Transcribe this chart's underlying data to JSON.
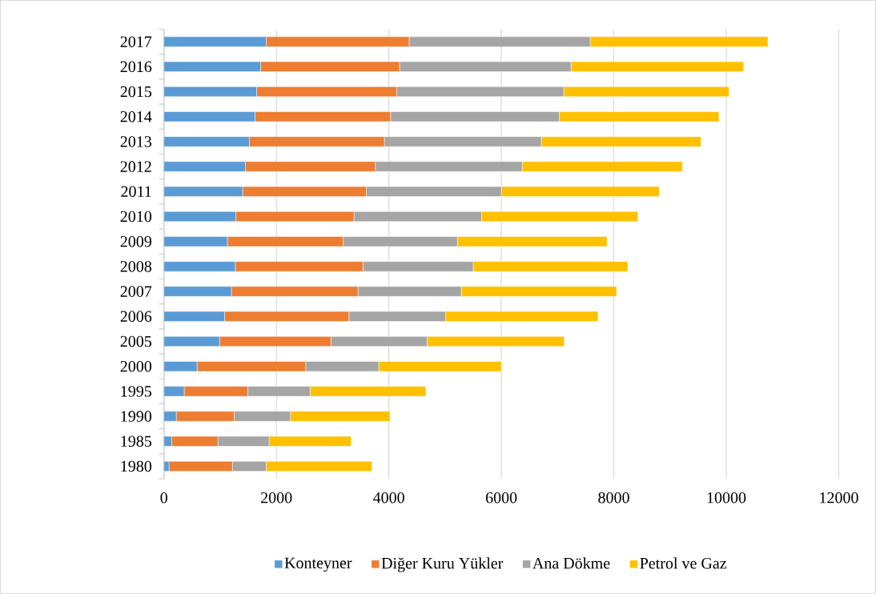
{
  "chart_data": {
    "type": "bar",
    "orientation": "horizontal",
    "stacked": true,
    "categories": [
      "2017",
      "2016",
      "2015",
      "2014",
      "2013",
      "2012",
      "2011",
      "2010",
      "2009",
      "2008",
      "2007",
      "2006",
      "2005",
      "2000",
      "1995",
      "1990",
      "1985",
      "1980"
    ],
    "series": [
      {
        "name": "Konteyner",
        "color": "#5b9bd5",
        "values": [
          1820,
          1720,
          1650,
          1620,
          1520,
          1450,
          1400,
          1280,
          1130,
          1270,
          1200,
          1080,
          990,
          590,
          360,
          220,
          140,
          90
        ]
      },
      {
        "name": "Diğer Kuru Yükler",
        "color": "#ed7d31",
        "values": [
          2540,
          2470,
          2490,
          2410,
          2400,
          2310,
          2200,
          2100,
          2060,
          2270,
          2250,
          2210,
          1980,
          1930,
          1130,
          1030,
          820,
          1130
        ]
      },
      {
        "name": "Ana Dökme",
        "color": "#a5a5a5",
        "values": [
          3220,
          3050,
          2970,
          3000,
          2790,
          2610,
          2400,
          2270,
          2030,
          1960,
          1840,
          1720,
          1710,
          1300,
          1110,
          1000,
          910,
          600
        ]
      },
      {
        "name": "Petrol ve Gaz",
        "color": "#ffc000",
        "values": [
          3160,
          3070,
          2940,
          2840,
          2840,
          2850,
          2810,
          2780,
          2660,
          2750,
          2760,
          2710,
          2440,
          2180,
          2060,
          1770,
          1460,
          1880
        ]
      }
    ],
    "xlim": [
      0,
      12000
    ],
    "xticks": [
      0,
      2000,
      4000,
      6000,
      8000,
      10000,
      12000
    ],
    "grid": "x",
    "legend": "bottom"
  }
}
